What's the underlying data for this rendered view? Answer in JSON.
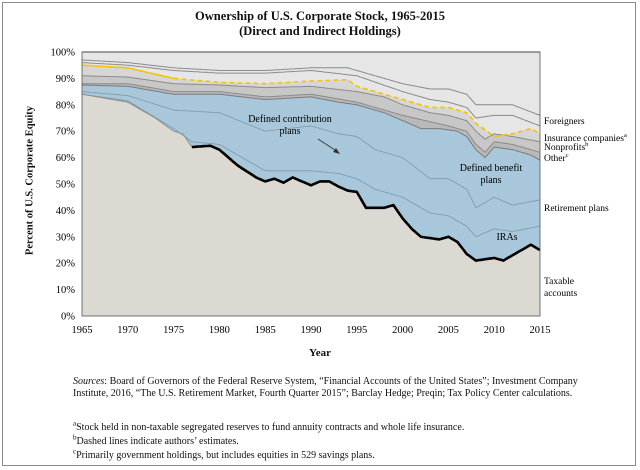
{
  "chart_data": {
    "type": "area",
    "title": "Ownership of U.S. Corporate Stock, 1965-2015",
    "subtitle": "(Direct and Indirect Holdings)",
    "xlabel": "Year",
    "ylabel": "Percent of U.S. Corporate Equity",
    "xlim": [
      1965,
      2015
    ],
    "ylim": [
      0,
      100
    ],
    "x_ticks": [
      "1965",
      "1970",
      "1975",
      "1980",
      "1985",
      "1990",
      "1995",
      "2000",
      "2005",
      "2010",
      "2015"
    ],
    "y_ticks": [
      "0%",
      "10%",
      "20%",
      "30%",
      "40%",
      "50%",
      "60%",
      "70%",
      "80%",
      "90%",
      "100%"
    ],
    "taxable_accounts": [
      [
        1965,
        84
      ],
      [
        1970,
        81
      ],
      [
        1973,
        75
      ],
      [
        1975,
        70
      ],
      [
        1976,
        69
      ],
      [
        1977,
        64
      ],
      [
        1979,
        64.5
      ],
      [
        1980,
        63
      ],
      [
        1982,
        57
      ],
      [
        1984,
        52.5
      ],
      [
        1985,
        51
      ],
      [
        1986,
        52
      ],
      [
        1987,
        50.5
      ],
      [
        1988,
        52.5
      ],
      [
        1989,
        51
      ],
      [
        1990,
        49.5
      ],
      [
        1991,
        51
      ],
      [
        1992,
        51
      ],
      [
        1993,
        49
      ],
      [
        1994,
        47.5
      ],
      [
        1995,
        47
      ],
      [
        1996,
        41
      ],
      [
        1998,
        41
      ],
      [
        1999,
        42
      ],
      [
        2000,
        37
      ],
      [
        2001,
        33
      ],
      [
        2002,
        30
      ],
      [
        2003,
        29.5
      ],
      [
        2004,
        29
      ],
      [
        2005,
        30
      ],
      [
        2006,
        28
      ],
      [
        2007,
        23.5
      ],
      [
        2008,
        21
      ],
      [
        2010,
        22
      ],
      [
        2011,
        21
      ],
      [
        2012,
        23
      ],
      [
        2013,
        25
      ],
      [
        2014,
        27
      ],
      [
        2015,
        25
      ]
    ],
    "bounds_ira_top": [
      [
        1965,
        84
      ],
      [
        1970,
        81.5
      ],
      [
        1975,
        71
      ],
      [
        1977,
        66
      ],
      [
        1980,
        65
      ],
      [
        1985,
        55
      ],
      [
        1990,
        55
      ],
      [
        1993,
        54
      ],
      [
        1995,
        52
      ],
      [
        1997,
        48
      ],
      [
        2000,
        45
      ],
      [
        2003,
        39
      ],
      [
        2005,
        38
      ],
      [
        2007,
        34
      ],
      [
        2008,
        30
      ],
      [
        2010,
        33
      ],
      [
        2012,
        32
      ],
      [
        2015,
        34
      ]
    ],
    "bounds_dc_top": [
      [
        1965,
        85
      ],
      [
        1970,
        83.5
      ],
      [
        1975,
        78
      ],
      [
        1980,
        77
      ],
      [
        1985,
        70
      ],
      [
        1990,
        72
      ],
      [
        1993,
        69
      ],
      [
        1995,
        68
      ],
      [
        1997,
        63
      ],
      [
        2000,
        60
      ],
      [
        2003,
        52
      ],
      [
        2005,
        52
      ],
      [
        2007,
        48
      ],
      [
        2008,
        41
      ],
      [
        2010,
        45
      ],
      [
        2012,
        42
      ],
      [
        2015,
        44
      ]
    ],
    "retirement_top": [
      [
        1965,
        87.5
      ],
      [
        1970,
        87
      ],
      [
        1975,
        84
      ],
      [
        1980,
        84
      ],
      [
        1985,
        82
      ],
      [
        1990,
        83
      ],
      [
        1993,
        81
      ],
      [
        1995,
        80
      ],
      [
        1998,
        77
      ],
      [
        2000,
        74
      ],
      [
        2002,
        71
      ],
      [
        2004,
        71
      ],
      [
        2006,
        70
      ],
      [
        2007,
        68
      ],
      [
        2008,
        63
      ],
      [
        2009,
        60
      ],
      [
        2010,
        64
      ],
      [
        2012,
        63
      ],
      [
        2014,
        61
      ],
      [
        2015,
        59
      ]
    ],
    "other_top": [
      [
        1965,
        88
      ],
      [
        1970,
        88
      ],
      [
        1975,
        85
      ],
      [
        1980,
        85
      ],
      [
        1985,
        83
      ],
      [
        1990,
        84
      ],
      [
        1995,
        81
      ],
      [
        2000,
        76
      ],
      [
        2005,
        72
      ],
      [
        2007,
        70
      ],
      [
        2008,
        65
      ],
      [
        2009,
        62
      ],
      [
        2010,
        66
      ],
      [
        2012,
        65
      ],
      [
        2015,
        62
      ]
    ],
    "nonprofits_top": [
      [
        1965,
        91
      ],
      [
        1970,
        90.5
      ],
      [
        1975,
        88
      ],
      [
        1980,
        87.5
      ],
      [
        1985,
        86.5
      ],
      [
        1990,
        87
      ],
      [
        1995,
        85
      ],
      [
        1998,
        83
      ],
      [
        2000,
        80
      ],
      [
        2003,
        77
      ],
      [
        2005,
        76
      ],
      [
        2007,
        74
      ],
      [
        2008,
        70
      ],
      [
        2009,
        67
      ],
      [
        2010,
        69
      ],
      [
        2012,
        68
      ],
      [
        2015,
        66
      ]
    ],
    "insurance_top": [
      [
        1965,
        95
      ],
      [
        1970,
        94
      ],
      [
        1975,
        90
      ],
      [
        1980,
        88.5
      ],
      [
        1985,
        88
      ],
      [
        1990,
        89
      ],
      [
        1994,
        89.5
      ],
      [
        1995,
        87
      ],
      [
        1998,
        84
      ],
      [
        2000,
        82
      ],
      [
        2003,
        79
      ],
      [
        2005,
        79
      ],
      [
        2007,
        77
      ],
      [
        2008,
        73
      ],
      [
        2010,
        68
      ],
      [
        2012,
        69
      ],
      [
        2014,
        71
      ],
      [
        2015,
        69
      ]
    ],
    "foreigners_top": [
      [
        1965,
        100
      ],
      [
        2015,
        100
      ]
    ],
    "top_lines": [
      [
        [
          1965,
          97
        ],
        [
          1970,
          96
        ],
        [
          1975,
          94
        ],
        [
          1980,
          93
        ],
        [
          1985,
          93
        ],
        [
          1990,
          94
        ],
        [
          1994,
          94
        ],
        [
          1995,
          93
        ],
        [
          2000,
          88
        ],
        [
          2003,
          86
        ],
        [
          2005,
          86
        ],
        [
          2007,
          84
        ],
        [
          2008,
          80
        ],
        [
          2010,
          80
        ],
        [
          2012,
          80
        ],
        [
          2015,
          76
        ]
      ],
      [
        [
          1965,
          96
        ],
        [
          1970,
          95
        ],
        [
          1975,
          93
        ],
        [
          1980,
          92
        ],
        [
          1985,
          92
        ],
        [
          1990,
          93
        ],
        [
          1995,
          91
        ],
        [
          2000,
          85
        ],
        [
          2003,
          82
        ],
        [
          2005,
          81
        ],
        [
          2007,
          79
        ],
        [
          2008,
          75
        ],
        [
          2010,
          76
        ],
        [
          2012,
          76
        ],
        [
          2015,
          72
        ]
      ]
    ],
    "series_labels": [
      "Foreigners",
      "Insurance companies",
      "Nonprofits",
      "Other",
      "Retirement plans",
      "Taxable accounts"
    ],
    "annotations": [
      "Defined contribution plans",
      "Defined benefit plans",
      "IRAs"
    ],
    "legend_superscripts": {
      "insurance": "a",
      "nonprofits": "b",
      "other": "c"
    }
  },
  "colors": {
    "taxable": "#dcd8d2",
    "retirement": "#a8c7da",
    "other": "#b9b9b9",
    "nonprofits": "#c7c7c7",
    "insurance": "#d6d6d6",
    "foreigners": "#e6e6e6",
    "dashed": "#f2c500",
    "line": "#8a8a8a",
    "black": "#000000"
  },
  "notes": {
    "sources_label": "Sources",
    "sources_text": ": Board of Governors of the Federal Reserve System, “Financial Accounts of the United States”; Investment Company Institute, 2016, “The U.S. Retirement Market, Fourth Quarter 2015”; Barclay Hedge; Preqin; Tax Policy Center calculations.",
    "a_mark": "a",
    "a_text": "Stock held in non-taxable segregated reserves to fund annuity contracts and whole life insurance.",
    "b_mark": "b",
    "b_text": "Dashed lines indicate authors’ estimates.",
    "c_mark": "c",
    "c_text": "Primarily government holdings, but includes equities in 529 savings plans."
  }
}
